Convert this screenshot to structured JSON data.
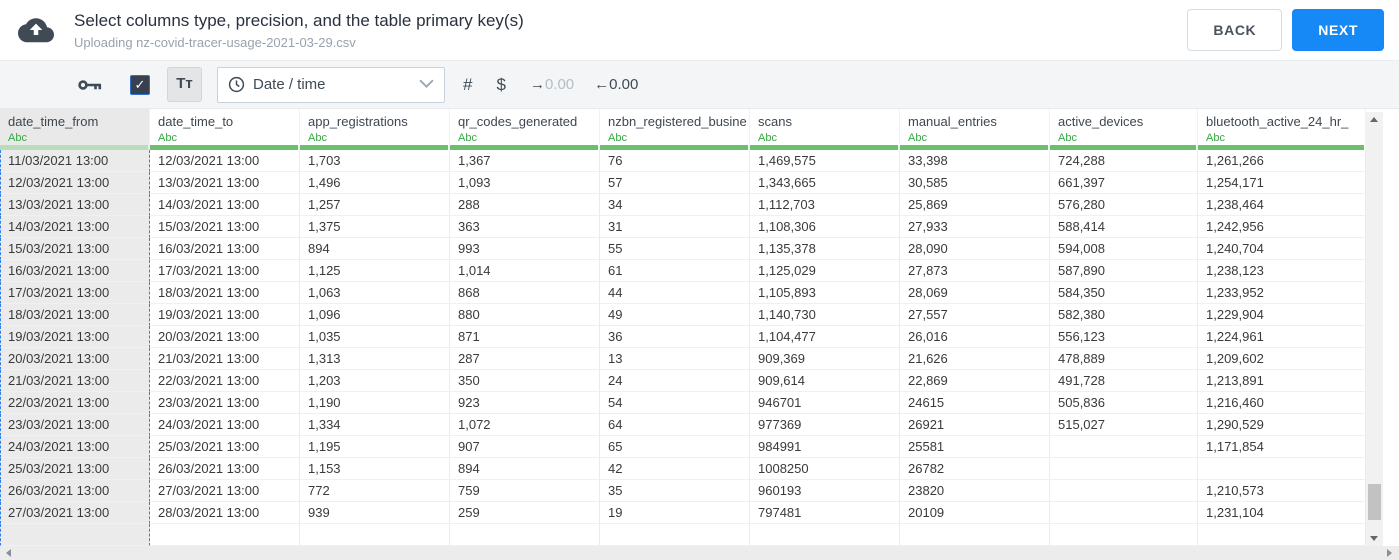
{
  "header": {
    "title": "Select columns type, precision, and the table primary key(s)",
    "subtitle": "Uploading nz-covid-tracer-usage-2021-03-29.csv",
    "back_label": "BACK",
    "next_label": "NEXT"
  },
  "toolbar": {
    "checkbox_checked": true,
    "text_format_label": "Tᴛ",
    "type_select": {
      "value": "Date / time"
    },
    "number_label": "#",
    "currency_label": "$",
    "decimal_increase": {
      "arrow": "→",
      "value": "0.00"
    },
    "decimal_decrease": {
      "arrow": "←",
      "value": "0.00"
    }
  },
  "icons": {
    "check": "✓"
  },
  "colors": {
    "accent_blue": "#1789f7",
    "type_green": "#36a845",
    "column_bar_green": "#6cc06c",
    "selected_column_bar_green": "#b9dcba",
    "selection_dash_blue": "#2f80ed"
  },
  "table": {
    "type_badge": "Abc",
    "selected_column_index": 0,
    "columns": [
      "date_time_from",
      "date_time_to",
      "app_registrations",
      "qr_codes_generated",
      "nzbn_registered_busine",
      "scans",
      "manual_entries",
      "active_devices",
      "bluetooth_active_24_hr_"
    ],
    "rows": [
      [
        "11/03/2021 13:00",
        "12/03/2021 13:00",
        "1,703",
        "1,367",
        "76",
        "1,469,575",
        "33,398",
        "724,288",
        "1,261,266"
      ],
      [
        "12/03/2021 13:00",
        "13/03/2021 13:00",
        "1,496",
        "1,093",
        "57",
        "1,343,665",
        "30,585",
        "661,397",
        "1,254,171"
      ],
      [
        "13/03/2021 13:00",
        "14/03/2021 13:00",
        "1,257",
        "288",
        "34",
        "1,112,703",
        "25,869",
        "576,280",
        "1,238,464"
      ],
      [
        "14/03/2021 13:00",
        "15/03/2021 13:00",
        "1,375",
        "363",
        "31",
        "1,108,306",
        "27,933",
        "588,414",
        "1,242,956"
      ],
      [
        "15/03/2021 13:00",
        "16/03/2021 13:00",
        "894",
        "993",
        "55",
        "1,135,378",
        "28,090",
        "594,008",
        "1,240,704"
      ],
      [
        "16/03/2021 13:00",
        "17/03/2021 13:00",
        "1,125",
        "1,014",
        "61",
        "1,125,029",
        "27,873",
        "587,890",
        "1,238,123"
      ],
      [
        "17/03/2021 13:00",
        "18/03/2021 13:00",
        "1,063",
        "868",
        "44",
        "1,105,893",
        "28,069",
        "584,350",
        "1,233,952"
      ],
      [
        "18/03/2021 13:00",
        "19/03/2021 13:00",
        "1,096",
        "880",
        "49",
        "1,140,730",
        "27,557",
        "582,380",
        "1,229,904"
      ],
      [
        "19/03/2021 13:00",
        "20/03/2021 13:00",
        "1,035",
        "871",
        "36",
        "1,104,477",
        "26,016",
        "556,123",
        "1,224,961"
      ],
      [
        "20/03/2021 13:00",
        "21/03/2021 13:00",
        "1,313",
        "287",
        "13",
        "909,369",
        "21,626",
        "478,889",
        "1,209,602"
      ],
      [
        "21/03/2021 13:00",
        "22/03/2021 13:00",
        "1,203",
        "350",
        "24",
        "909,614",
        "22,869",
        "491,728",
        "1,213,891"
      ],
      [
        "22/03/2021 13:00",
        "23/03/2021 13:00",
        "1,190",
        "923",
        "54",
        "946701",
        "24615",
        "505,836",
        "1,216,460"
      ],
      [
        "23/03/2021 13:00",
        "24/03/2021 13:00",
        "1,334",
        "1,072",
        "64",
        "977369",
        "26921",
        "515,027",
        "1,290,529"
      ],
      [
        "24/03/2021 13:00",
        "25/03/2021 13:00",
        "1,195",
        "907",
        "65",
        "984991",
        "25581",
        "",
        "1,171,854"
      ],
      [
        "25/03/2021 13:00",
        "26/03/2021 13:00",
        "1,153",
        "894",
        "42",
        "1008250",
        "26782",
        "",
        ""
      ],
      [
        "26/03/2021 13:00",
        "27/03/2021 13:00",
        "772",
        "759",
        "35",
        "960193",
        "23820",
        "",
        "1,210,573"
      ],
      [
        "27/03/2021 13:00",
        "28/03/2021 13:00",
        "939",
        "259",
        "19",
        "797481",
        "20109",
        "",
        "1,231,104"
      ],
      [
        "",
        "",
        "",
        "",
        "",
        "",
        "",
        "",
        ""
      ]
    ]
  }
}
